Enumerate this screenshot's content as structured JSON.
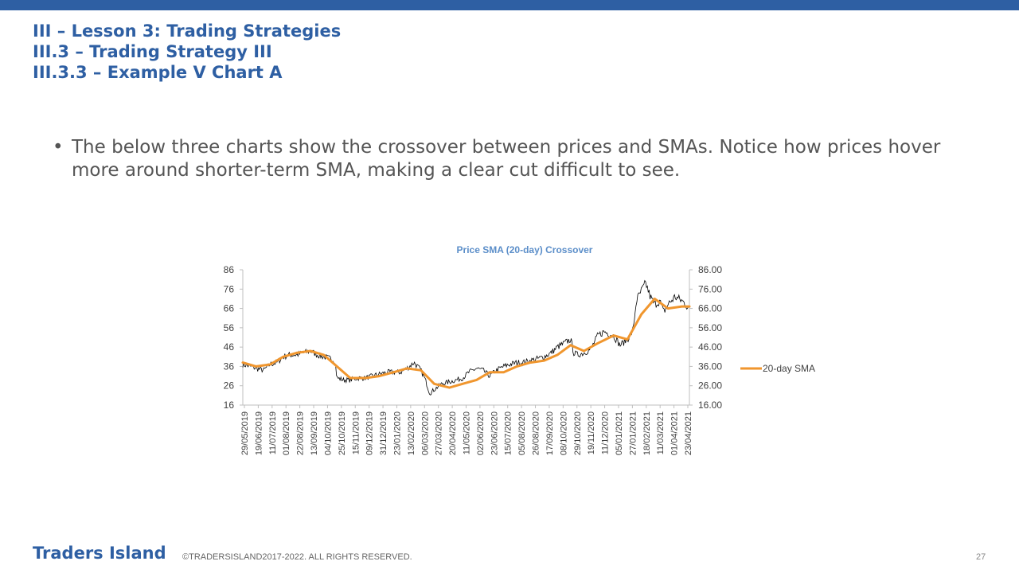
{
  "slide": {
    "heading1": "III – Lesson 3: Trading Strategies",
    "heading2": "III.3 – Trading Strategy III",
    "heading3": "III.3.3 – Example V Chart A",
    "bullet": "The below three charts show the crossover between prices and SMAs. Notice how prices hover more around shorter-term SMA, making a clear cut difficult to see.",
    "bullet_symbol": "•",
    "footer_brand": "Traders Island",
    "footer_copy": "©TRADERSISLAND2017-2022. ALL RIGHTS RESERVED.",
    "page_number": "27"
  },
  "colors": {
    "accent": "#2e5fa3",
    "price": "#000000",
    "sma": "#f0962e",
    "title": "#5b8ec9"
  },
  "chart_data": {
    "type": "line",
    "title": "Price SMA (20-day) Crossover",
    "x_range": [
      "2019-05-29",
      "2021-05-05"
    ],
    "y_left": {
      "range": [
        16,
        86
      ],
      "ticks": [
        "86",
        "76",
        "66",
        "56",
        "46",
        "36",
        "26",
        "16"
      ]
    },
    "y_right": {
      "range": [
        16,
        86
      ],
      "ticks": [
        "86.00",
        "76.00",
        "66.00",
        "56.00",
        "46.00",
        "36.00",
        "26.00",
        "16.00"
      ]
    },
    "x_tick_labels": [
      "29/05/2019",
      "19/06/2019",
      "11/07/2019",
      "01/08/2019",
      "22/08/2019",
      "13/09/2019",
      "04/10/2019",
      "25/10/2019",
      "15/11/2019",
      "09/12/2019",
      "31/12/2019",
      "23/01/2020",
      "13/02/2020",
      "06/03/2020",
      "27/03/2020",
      "20/04/2020",
      "11/05/2020",
      "02/06/2020",
      "23/06/2020",
      "15/07/2020",
      "05/08/2020",
      "26/08/2020",
      "17/09/2020",
      "08/10/2020",
      "29/10/2020",
      "19/11/2020",
      "11/12/2020",
      "05/01/2021",
      "27/01/2021",
      "18/02/2021",
      "11/03/2021",
      "01/04/2021",
      "23/04/2021"
    ],
    "legend": {
      "placement": "right",
      "entries": [
        {
          "label": "20-day SMA",
          "color": "#f0962e"
        }
      ]
    },
    "series": [
      {
        "x": [
          "2019-05-29",
          "2019-06-10",
          "2019-06-19",
          "2019-07-01",
          "2019-07-11",
          "2019-07-22",
          "2019-08-01",
          "2019-08-12",
          "2019-08-22",
          "2019-09-02",
          "2019-09-13",
          "2019-09-24",
          "2019-10-04",
          "2019-10-15",
          "2019-10-22",
          "2019-10-25",
          "2019-11-05",
          "2019-11-15",
          "2019-11-27",
          "2019-12-09",
          "2019-12-20",
          "2019-12-31",
          "2020-01-13",
          "2020-01-23",
          "2020-02-03",
          "2020-02-13",
          "2020-02-24",
          "2020-03-06",
          "2020-03-13",
          "2020-03-20",
          "2020-03-27",
          "2020-04-08",
          "2020-04-20",
          "2020-05-01",
          "2020-05-11",
          "2020-05-21",
          "2020-06-02",
          "2020-06-12",
          "2020-06-23",
          "2020-07-03",
          "2020-07-15",
          "2020-07-24",
          "2020-08-05",
          "2020-08-14",
          "2020-08-26",
          "2020-09-07",
          "2020-09-17",
          "2020-09-28",
          "2020-10-08",
          "2020-10-19",
          "2020-10-29",
          "2020-11-03",
          "2020-11-09",
          "2020-11-19",
          "2020-11-30",
          "2020-12-11",
          "2020-12-21",
          "2021-01-05",
          "2021-01-15",
          "2021-01-27",
          "2021-02-05",
          "2021-02-10",
          "2021-02-18",
          "2021-02-25",
          "2021-03-04",
          "2021-03-11",
          "2021-03-19",
          "2021-03-25",
          "2021-04-01",
          "2021-04-12",
          "2021-04-23",
          "2021-05-05"
        ],
        "values": [
          37,
          36,
          35,
          34,
          37,
          38,
          41,
          42,
          42,
          43,
          44,
          42,
          41,
          40,
          39,
          30,
          29,
          29,
          30,
          30,
          31,
          32,
          33,
          33,
          33,
          35,
          38,
          34,
          29,
          22,
          24,
          27,
          28,
          29,
          30,
          33,
          35,
          34,
          31,
          34,
          36,
          37,
          38,
          38,
          39,
          40,
          41,
          43,
          46,
          48,
          50,
          43,
          42,
          43,
          45,
          52,
          54,
          52,
          47,
          50,
          55,
          70,
          75,
          79,
          72,
          68,
          70,
          64,
          68,
          72,
          70,
          66
        ]
      },
      {
        "name": "20-day SMA",
        "x": [
          "2019-05-29",
          "2019-06-19",
          "2019-07-11",
          "2019-08-01",
          "2019-08-22",
          "2019-09-13",
          "2019-10-04",
          "2019-10-25",
          "2019-11-15",
          "2019-12-09",
          "2019-12-31",
          "2020-01-23",
          "2020-02-13",
          "2020-03-06",
          "2020-03-27",
          "2020-04-20",
          "2020-05-11",
          "2020-06-02",
          "2020-06-23",
          "2020-07-15",
          "2020-08-05",
          "2020-08-26",
          "2020-09-17",
          "2020-10-08",
          "2020-10-29",
          "2020-11-19",
          "2020-12-11",
          "2021-01-05",
          "2021-01-27",
          "2021-02-18",
          "2021-03-11",
          "2021-04-01",
          "2021-04-23",
          "2021-05-05"
        ],
        "values": [
          38,
          36,
          37,
          41,
          43,
          44,
          42,
          36,
          30,
          30,
          31,
          33,
          35,
          34,
          27,
          25,
          27,
          29,
          33,
          33,
          36,
          38,
          39,
          42,
          47,
          44,
          48,
          52,
          50,
          63,
          71,
          66,
          67,
          67
        ]
      }
    ]
  }
}
